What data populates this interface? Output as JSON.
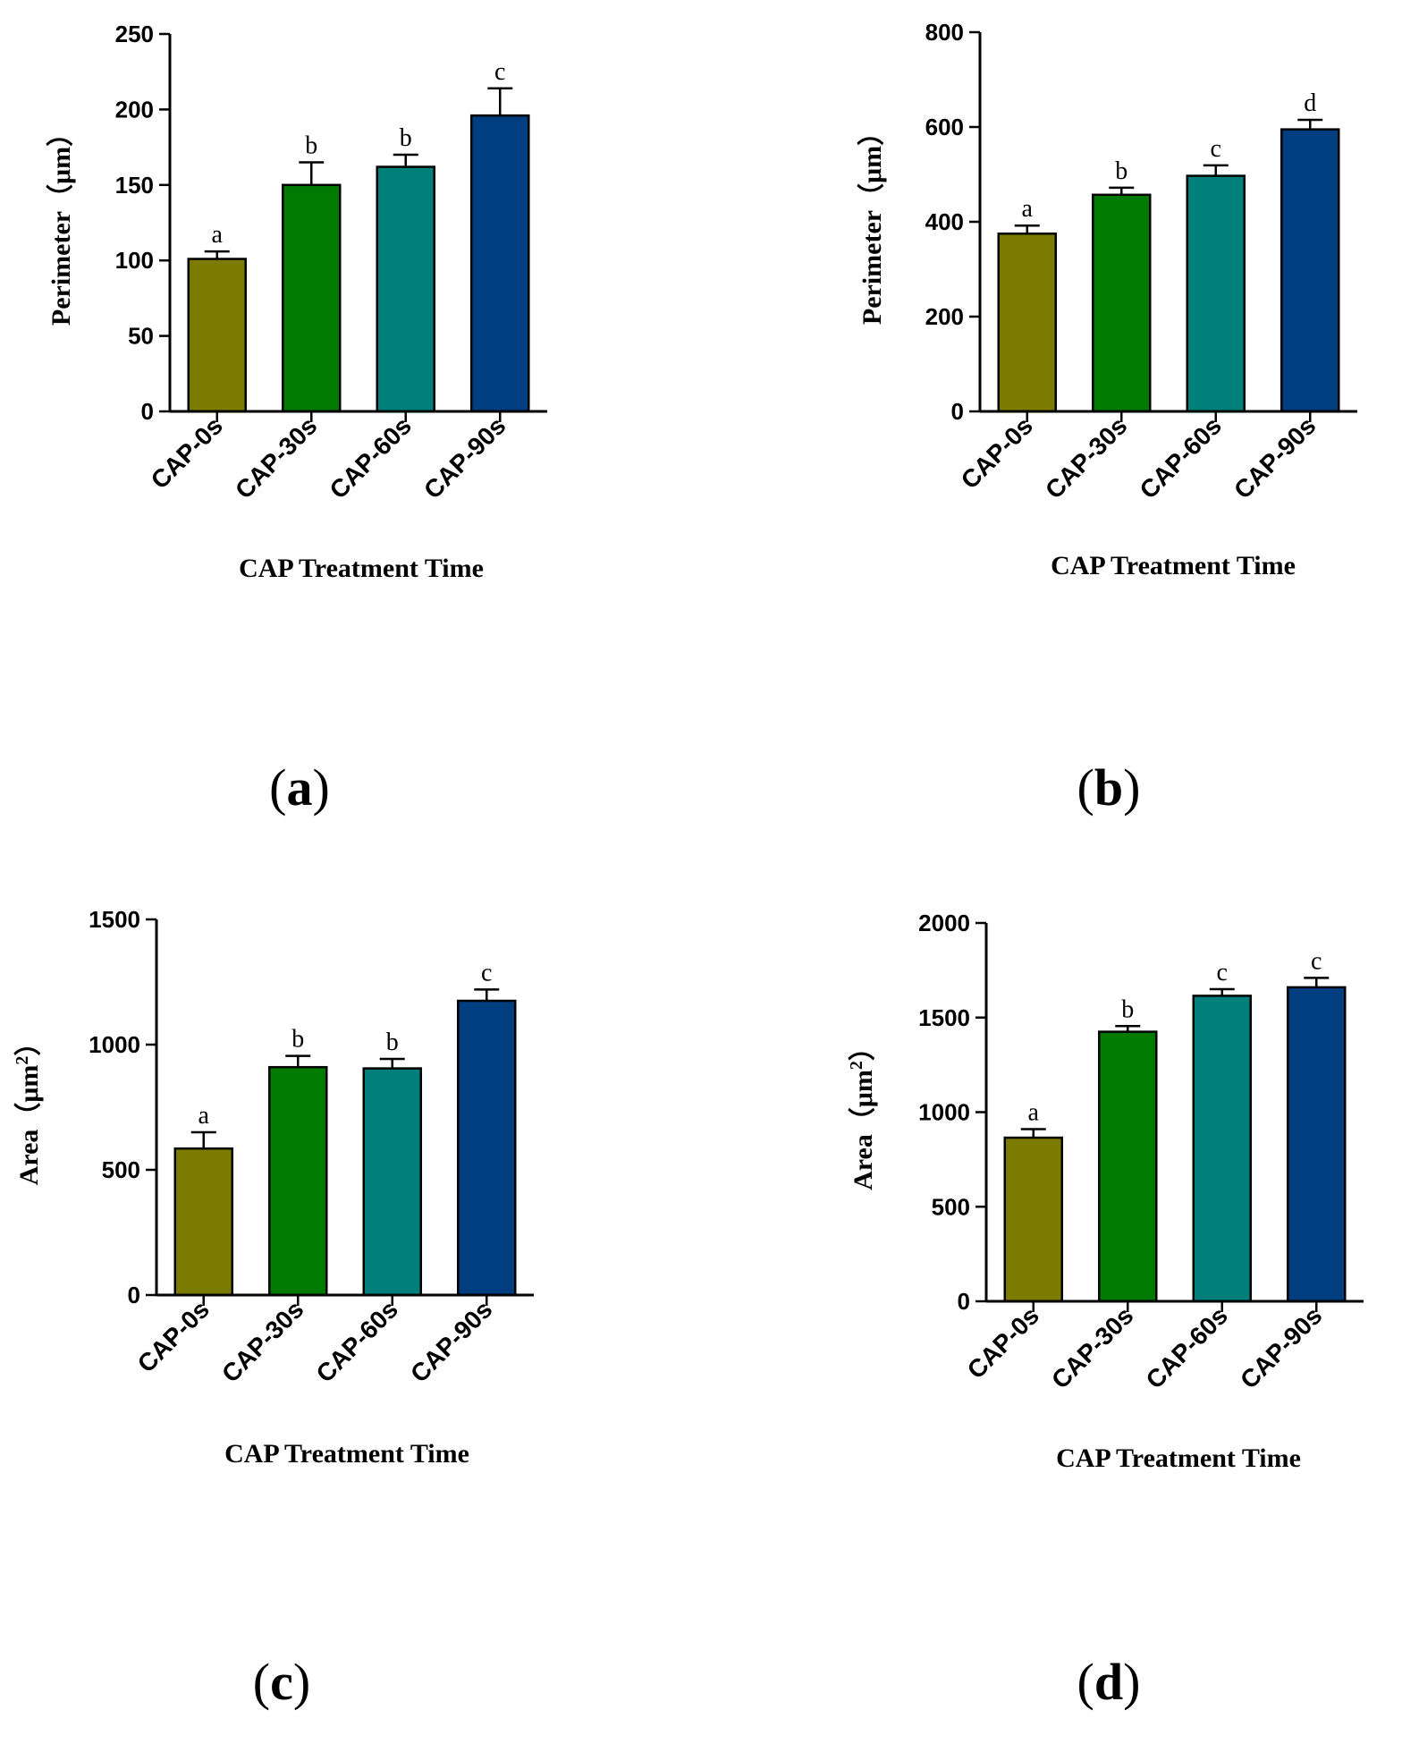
{
  "colors": [
    "#7b7b00",
    "#007a00",
    "#007f7b",
    "#003e80"
  ],
  "chart_data": [
    {
      "type": "bar",
      "panel": "a",
      "categories": [
        "CAP-0s",
        "CAP-30s",
        "CAP-60s",
        "CAP-90s"
      ],
      "values": [
        101,
        150,
        162,
        196
      ],
      "errors": [
        5,
        15,
        8,
        18
      ],
      "letters": [
        "a",
        "b",
        "b",
        "c"
      ],
      "ylabel": "Perimeter（μm）",
      "xlabel": "CAP Treatment Time",
      "ylim": [
        0,
        250
      ],
      "yticks": [
        0,
        50,
        100,
        150,
        200,
        250
      ],
      "ytick_labels": [
        "0",
        "50",
        "100",
        "150",
        "200",
        "250"
      ]
    },
    {
      "type": "bar",
      "panel": "b",
      "categories": [
        "CAP-0s",
        "CAP-30s",
        "CAP-60s",
        "CAP-90s"
      ],
      "values": [
        375,
        457,
        497,
        595
      ],
      "errors": [
        17,
        15,
        22,
        20
      ],
      "letters": [
        "a",
        "b",
        "c",
        "d"
      ],
      "ylabel": "Perimeter（μm）",
      "xlabel": "CAP Treatment Time",
      "ylim": [
        0,
        800
      ],
      "yticks": [
        0,
        200,
        400,
        600,
        800
      ],
      "ytick_labels": [
        "0",
        "200",
        "400",
        "600",
        "800"
      ]
    },
    {
      "type": "bar",
      "panel": "c",
      "categories": [
        "CAP-0s",
        "CAP-30s",
        "CAP-60s",
        "CAP-90s"
      ],
      "values": [
        585,
        910,
        905,
        1175
      ],
      "errors": [
        65,
        45,
        38,
        45
      ],
      "letters": [
        "a",
        "b",
        "b",
        "c"
      ],
      "ylabel": "Area（μm",
      "ylabel_sup": "2",
      "ylabel_end": "）",
      "xlabel": "CAP Treatment Time",
      "ylim": [
        0,
        1500
      ],
      "yticks": [
        0,
        500,
        1000,
        1500
      ],
      "ytick_labels": [
        "0",
        "500",
        "1000",
        "1500"
      ]
    },
    {
      "type": "bar",
      "panel": "d",
      "categories": [
        "CAP-0s",
        "CAP-30s",
        "CAP-60s",
        "CAP-90s"
      ],
      "values": [
        865,
        1425,
        1615,
        1660
      ],
      "errors": [
        45,
        30,
        35,
        50
      ],
      "letters": [
        "a",
        "b",
        "c",
        "c"
      ],
      "ylabel": "Area（μm",
      "ylabel_sup": "2",
      "ylabel_end": "）",
      "xlabel": "CAP Treatment Time",
      "ylim": [
        0,
        2000
      ],
      "yticks": [
        0,
        500,
        1000,
        1500,
        2000
      ],
      "ytick_labels": [
        "0",
        "500",
        "1000",
        "1500",
        "2000"
      ]
    }
  ],
  "panel_labels": [
    {
      "open": "(",
      "letter": "a",
      "close": ")"
    },
    {
      "open": "(",
      "letter": "b",
      "close": ")"
    },
    {
      "open": "(",
      "letter": "c",
      "close": ")"
    },
    {
      "open": "(",
      "letter": "d",
      "close": ")"
    }
  ]
}
